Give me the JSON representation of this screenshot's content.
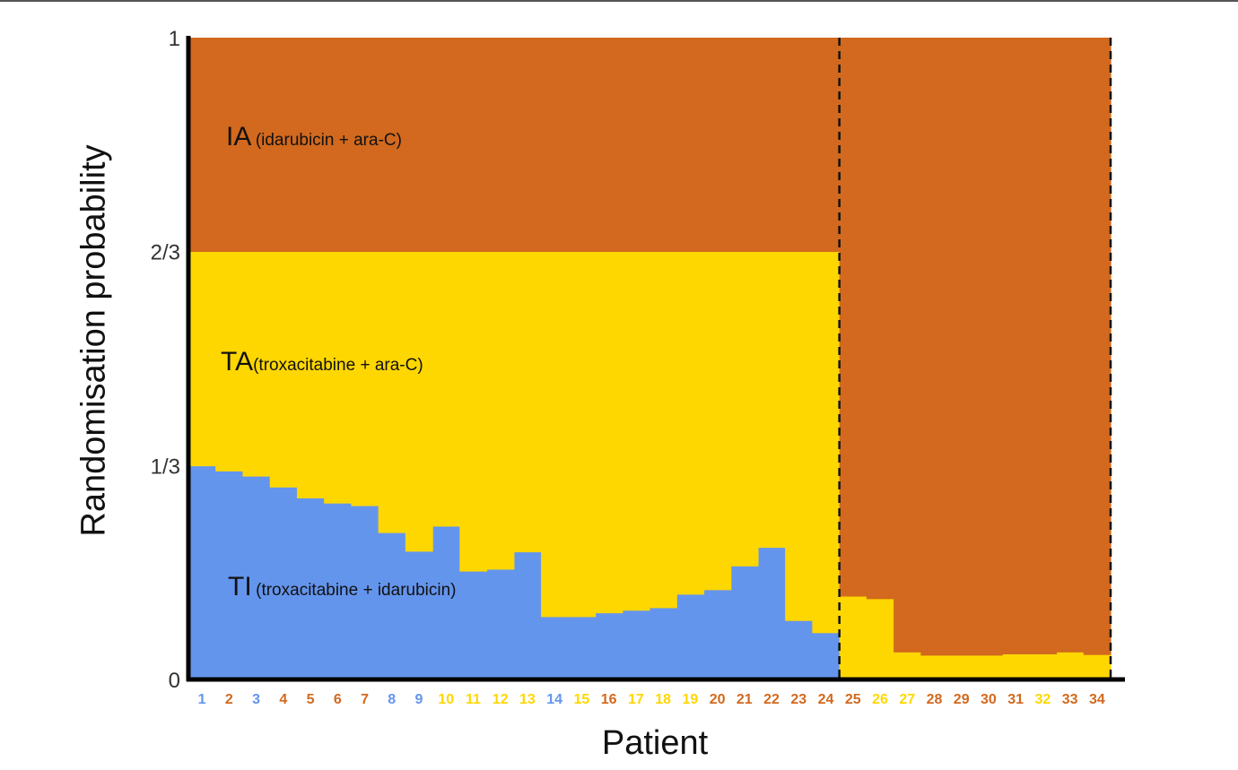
{
  "chart_data": {
    "type": "area",
    "title": "",
    "xlabel": "Patient",
    "ylabel": "Randomisation probability",
    "ylim": [
      0,
      1
    ],
    "yticks": [
      "0",
      "1/3",
      "2/3",
      "1"
    ],
    "x": [
      1,
      2,
      3,
      4,
      5,
      6,
      7,
      8,
      9,
      10,
      11,
      12,
      13,
      14,
      15,
      16,
      17,
      18,
      19,
      20,
      21,
      22,
      23,
      24,
      25,
      26,
      27,
      28,
      29,
      30,
      31,
      32,
      33,
      34
    ],
    "series": [
      {
        "name": "TI",
        "full_name": "(troxacitabine + idarubicin)",
        "color": "#6495ED",
        "values": [
          0.333,
          0.325,
          0.317,
          0.3,
          0.283,
          0.275,
          0.271,
          0.229,
          0.2,
          0.239,
          0.169,
          0.172,
          0.199,
          0.098,
          0.098,
          0.104,
          0.108,
          0.112,
          0.133,
          0.14,
          0.177,
          0.206,
          0.092,
          0.073,
          0,
          0,
          0,
          0,
          0,
          0,
          0,
          0,
          0,
          0
        ]
      },
      {
        "name": "TA",
        "full_name": "(troxacitabine + ara-C)",
        "color": "#FFD700",
        "values": [
          0.334,
          0.342,
          0.35,
          0.367,
          0.384,
          0.392,
          0.396,
          0.438,
          0.467,
          0.428,
          0.498,
          0.495,
          0.468,
          0.569,
          0.569,
          0.563,
          0.559,
          0.555,
          0.534,
          0.527,
          0.49,
          0.461,
          0.575,
          0.594,
          0.13,
          0.126,
          0.043,
          0.038,
          0.038,
          0.038,
          0.04,
          0.04,
          0.043,
          0.039
        ]
      },
      {
        "name": "IA",
        "full_name": "(idarubicin + ara-C)",
        "color": "#D2691E",
        "values": [
          0.333,
          0.333,
          0.333,
          0.333,
          0.333,
          0.333,
          0.333,
          0.333,
          0.333,
          0.333,
          0.333,
          0.333,
          0.333,
          0.333,
          0.333,
          0.333,
          0.333,
          0.333,
          0.333,
          0.333,
          0.333,
          0.333,
          0.333,
          0.333,
          0.87,
          0.874,
          0.957,
          0.962,
          0.962,
          0.962,
          0.96,
          0.96,
          0.957,
          0.961
        ]
      }
    ],
    "patient_label_colors": [
      "#6495ED",
      "#D2691E",
      "#6495ED",
      "#D2691E",
      "#D2691E",
      "#D2691E",
      "#D2691E",
      "#6495ED",
      "#6495ED",
      "#FFD700",
      "#FFD700",
      "#FFD700",
      "#FFD700",
      "#6495ED",
      "#FFD700",
      "#D2691E",
      "#FFD700",
      "#FFD700",
      "#FFD700",
      "#D2691E",
      "#D2691E",
      "#D2691E",
      "#D2691E",
      "#D2691E",
      "#D2691E",
      "#FFD700",
      "#FFD700",
      "#D2691E",
      "#D2691E",
      "#D2691E",
      "#D2691E",
      "#FFD700",
      "#D2691E",
      "#D2691E"
    ],
    "dashed_dividers_after_x": [
      24,
      34
    ],
    "grid": false,
    "legend": "inline region labels"
  }
}
